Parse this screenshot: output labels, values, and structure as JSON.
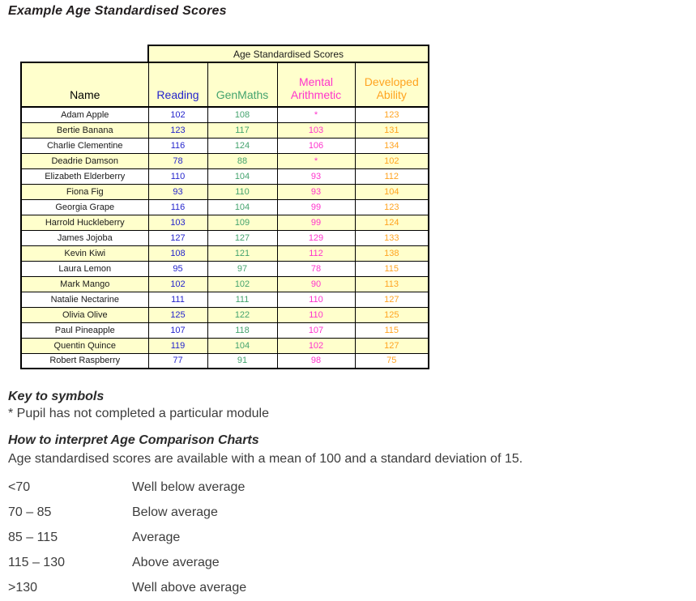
{
  "page": {
    "title": "Example Age Standardised Scores"
  },
  "table": {
    "group_header": "Age Standardised Scores",
    "header_bg": "#FFFFCC",
    "row_alt_bg": "#FFFFCC",
    "columns": [
      {
        "label": "Name",
        "color": "#000000"
      },
      {
        "label": "Reading",
        "color": "#2424CC"
      },
      {
        "label": "GenMaths",
        "color": "#44A36E"
      },
      {
        "label": "Mental Arithmetic",
        "color": "#FF33CC"
      },
      {
        "label": "Developed Ability",
        "color": "#FFA320"
      }
    ],
    "rows": [
      {
        "name": "Adam Apple",
        "reading": "102",
        "genmaths": "108",
        "mental": "*",
        "developed": "123"
      },
      {
        "name": "Bertie Banana",
        "reading": "123",
        "genmaths": "117",
        "mental": "103",
        "developed": "131"
      },
      {
        "name": "Charlie Clementine",
        "reading": "116",
        "genmaths": "124",
        "mental": "106",
        "developed": "134"
      },
      {
        "name": "Deadrie Damson",
        "reading": "78",
        "genmaths": "88",
        "mental": "*",
        "developed": "102"
      },
      {
        "name": "Elizabeth Elderberry",
        "reading": "110",
        "genmaths": "104",
        "mental": "93",
        "developed": "112"
      },
      {
        "name": "Fiona Fig",
        "reading": "93",
        "genmaths": "110",
        "mental": "93",
        "developed": "104"
      },
      {
        "name": "Georgia Grape",
        "reading": "116",
        "genmaths": "104",
        "mental": "99",
        "developed": "123"
      },
      {
        "name": "Harrold Huckleberry",
        "reading": "103",
        "genmaths": "109",
        "mental": "99",
        "developed": "124"
      },
      {
        "name": "James Jojoba",
        "reading": "127",
        "genmaths": "127",
        "mental": "129",
        "developed": "133"
      },
      {
        "name": "Kevin Kiwi",
        "reading": "108",
        "genmaths": "121",
        "mental": "112",
        "developed": "138"
      },
      {
        "name": "Laura Lemon",
        "reading": "95",
        "genmaths": "97",
        "mental": "78",
        "developed": "115"
      },
      {
        "name": "Mark Mango",
        "reading": "102",
        "genmaths": "102",
        "mental": "90",
        "developed": "113"
      },
      {
        "name": "Natalie Nectarine",
        "reading": "111",
        "genmaths": "111",
        "mental": "110",
        "developed": "127"
      },
      {
        "name": "Olivia Olive",
        "reading": "125",
        "genmaths": "122",
        "mental": "110",
        "developed": "125"
      },
      {
        "name": "Paul Pineapple",
        "reading": "107",
        "genmaths": "118",
        "mental": "107",
        "developed": "115"
      },
      {
        "name": "Quentin Quince",
        "reading": "119",
        "genmaths": "104",
        "mental": "102",
        "developed": "127"
      },
      {
        "name": "Robert Raspberry",
        "reading": "77",
        "genmaths": "91",
        "mental": "98",
        "developed": "75"
      }
    ]
  },
  "key": {
    "heading": "Key to symbols",
    "note": "* Pupil has not completed a particular module"
  },
  "interpretation": {
    "heading": "How to interpret Age Comparison Charts",
    "intro": "Age standardised scores are available with a mean of 100 and a standard deviation of 15.",
    "bands": [
      {
        "range": "<70",
        "label": "Well below average"
      },
      {
        "range": "70 – 85",
        "label": "Below average"
      },
      {
        "range": "85 – 115",
        "label": "Average"
      },
      {
        "range": "115 – 130",
        "label": "Above average"
      },
      {
        "range": ">130",
        "label": "Well above average"
      }
    ]
  }
}
